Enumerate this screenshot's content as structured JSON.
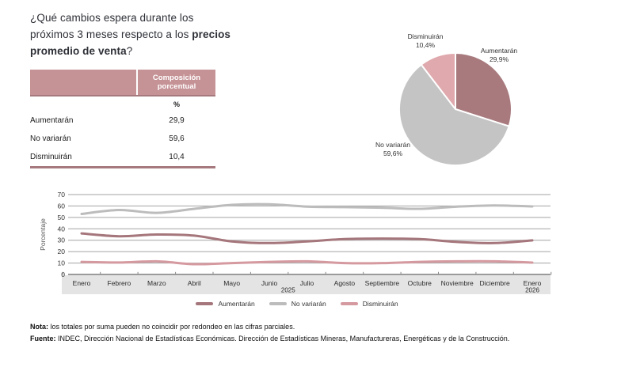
{
  "question": {
    "line1": "¿Qué cambios espera durante los",
    "line2_normal": "próximos 3 meses respecto a los ",
    "line2_bold": "precios",
    "line3_bold": "promedio de venta",
    "line3_suffix": "?"
  },
  "table": {
    "header": "Composición porcentual",
    "unit": "%",
    "rows": [
      {
        "label": "Aumentarán",
        "value": "29,9"
      },
      {
        "label": "No variarán",
        "value": "59,6"
      },
      {
        "label": "Disminuirán",
        "value": "10,4"
      }
    ]
  },
  "chart_data": [
    {
      "type": "pie",
      "start_angle": "12-oclock",
      "direction": "clockwise",
      "slices": [
        {
          "label": "Aumentarán",
          "value": 29.9,
          "display": "29,9%",
          "color": "#a87a7e"
        },
        {
          "label": "No variarán",
          "value": 59.6,
          "display": "59,6%",
          "color": "#c5c4c4"
        },
        {
          "label": "Disminuirán",
          "value": 10.4,
          "display": "10,4%",
          "color": "#dfa9ad"
        }
      ]
    },
    {
      "type": "line",
      "ylabel": "Porcentaje",
      "ylim": [
        0,
        70
      ],
      "ytick_step": 10,
      "grid": "horizontal",
      "legend_position": "bottom",
      "categories": [
        "Enero",
        "Febrero",
        "Marzo",
        "Abril",
        "Mayo",
        "Junio",
        "Julio",
        "Agosto",
        "Septiembre",
        "Octubre",
        "Noviembre",
        "Diciembre",
        "Enero"
      ],
      "year_labels": [
        {
          "text": "2025",
          "position": 5.5
        },
        {
          "text": "2026",
          "position": 12
        }
      ],
      "series": [
        {
          "name": "Aumentarán",
          "color": "#a5767b",
          "values": [
            36,
            33.5,
            35,
            34,
            29,
            27.5,
            29,
            31,
            31.5,
            31,
            28.5,
            27.5,
            29.9
          ]
        },
        {
          "name": "No variarán",
          "color": "#bdbcbc",
          "values": [
            53,
            56.5,
            54,
            57.5,
            61,
            61.5,
            59.5,
            59,
            58.5,
            57.5,
            59.5,
            60.5,
            59.6
          ]
        },
        {
          "name": "Disminuirán",
          "color": "#d59aa0",
          "values": [
            11,
            10.5,
            11.5,
            9,
            10,
            11,
            11.5,
            10,
            10,
            11,
            11.5,
            11.5,
            10.4
          ]
        }
      ]
    }
  ],
  "footer": {
    "nota_label": "Nota:",
    "nota_text": "los totales por suma pueden no coincidir por redondeo en las cifras parciales.",
    "fuente_label": "Fuente:",
    "fuente_text": "INDEC, Dirección Nacional de Estadísticas Económicas. Dirección de Estadísticas Mineras, Manufactureras, Energéticas y de la Construcción."
  },
  "colors": {
    "accent_rose": "#a5797e",
    "table_header": "#c59296",
    "pie_gray": "#c5c4c4",
    "pie_pink": "#dfa9ad",
    "axis_band": "#e5e4e4",
    "gridline": "#a3a3a3",
    "text_dark": "#333333"
  }
}
